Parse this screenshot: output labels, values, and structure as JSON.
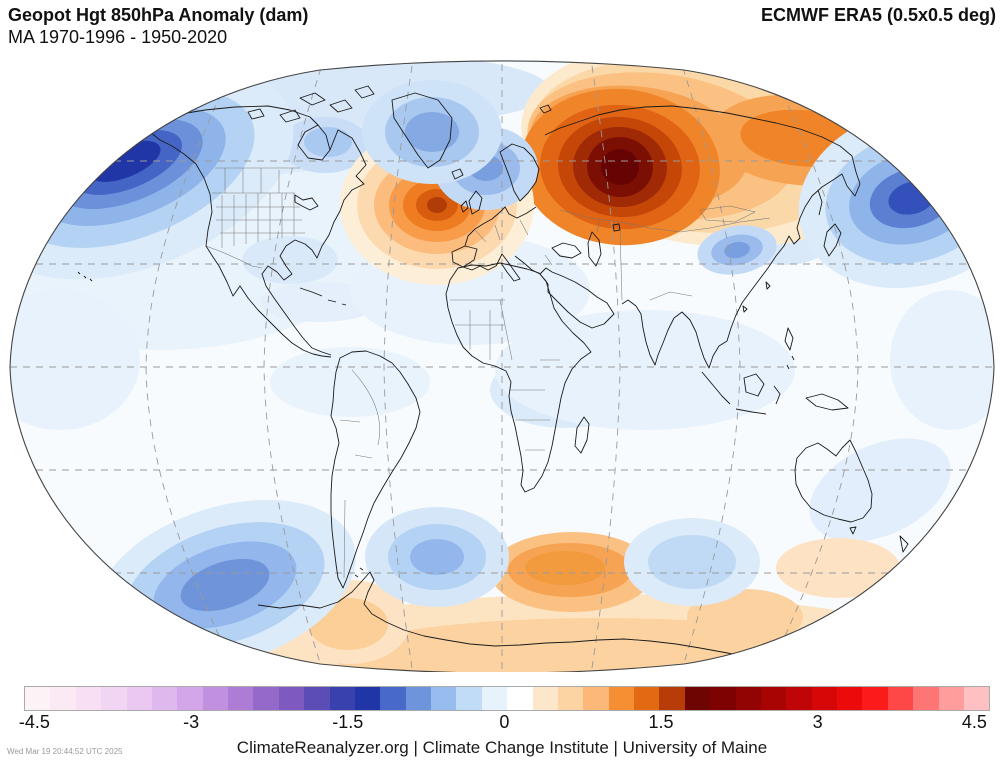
{
  "header": {
    "title": "Geopot Hgt 850hPa Anomaly (dam)",
    "subtitle": "MA 1970-1996 - 1950-2020",
    "dataset": "ECMWF ERA5 (0.5x0.5 deg)"
  },
  "map": {
    "projection": "winkel-tripel-world",
    "variable": "Geopotential Height 850hPa Anomaly",
    "units": "dam",
    "graticule": "dashed gray, 30 degree spacing",
    "anomaly_features": [
      {
        "region": "Western Russia / Eastern Europe",
        "sign": "positive",
        "peak_dam": 2.0
      },
      {
        "region": "Central North Atlantic (west of Iberia)",
        "sign": "positive",
        "peak_dam": 1.5
      },
      {
        "region": "Eastern Siberia / Arctic coast",
        "sign": "positive",
        "peak_dam": 1.0
      },
      {
        "region": "Bering Sea / Aleutians",
        "sign": "negative",
        "peak_dam": -1.5
      },
      {
        "region": "Northeast Pacific (right map edge)",
        "sign": "negative",
        "peak_dam": -1.25
      },
      {
        "region": "Baffin Bay / west of Greenland",
        "sign": "negative",
        "peak_dam": -0.75
      },
      {
        "region": "Norwegian Sea / Scandinavia",
        "sign": "negative",
        "peak_dam": -0.75
      },
      {
        "region": "Tibetan Plateau",
        "sign": "negative",
        "peak_dam": -0.75
      },
      {
        "region": "Subpolar South Pacific",
        "sign": "negative",
        "peak_dam": -1.0
      },
      {
        "region": "Subpolar South Atlantic",
        "sign": "negative",
        "peak_dam": -0.75
      },
      {
        "region": "Southern Indian Ocean",
        "sign": "negative",
        "peak_dam": -0.5
      },
      {
        "region": "Antarctic coastal band",
        "sign": "positive",
        "peak_dam": 0.75
      }
    ]
  },
  "colorbar": {
    "min": -4.6,
    "max": 4.65,
    "ticks": [
      {
        "label": "-4.5",
        "value": -4.5
      },
      {
        "label": "-3",
        "value": -3
      },
      {
        "label": "-1.5",
        "value": -1.5
      },
      {
        "label": "0",
        "value": 0
      },
      {
        "label": "1.5",
        "value": 1.5
      },
      {
        "label": "3",
        "value": 3
      },
      {
        "label": "4.5",
        "value": 4.5
      }
    ],
    "colors": [
      "#fdf2f5",
      "#fbe9f3",
      "#f8dff3",
      "#f2d5f3",
      "#eac8f1",
      "#dfb8ee",
      "#d2a6e9",
      "#c191df",
      "#ad7cd4",
      "#9569c9",
      "#7d59c0",
      "#5c4cb6",
      "#3841ae",
      "#2136a6",
      "#4869c9",
      "#6e95dc",
      "#97bdee",
      "#c0dcf7",
      "#e6f2fc",
      "#ffffff",
      "#fde7cb",
      "#fcd3a2",
      "#fbb878",
      "#f68f33",
      "#e26a12",
      "#b83c08",
      "#6f0502",
      "#7e0202",
      "#920303",
      "#a80404",
      "#bf0505",
      "#d60707",
      "#ec0a0a",
      "#fb1b1b",
      "#fe4848",
      "#fe7575",
      "#ff9d9d",
      "#ffc0c4"
    ]
  },
  "footer": {
    "attribution": "ClimateReanalyzer.org | Climate Change Institute | University of Maine",
    "timestamp": "Wed Mar 19 20:44:52 UTC 2025"
  }
}
